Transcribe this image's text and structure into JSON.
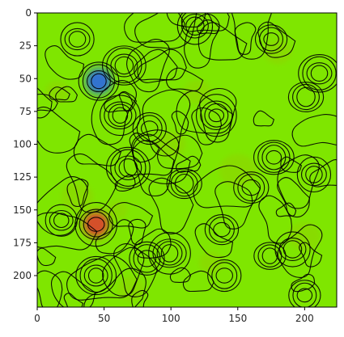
{
  "chart_data": {
    "type": "heatmap",
    "title": "",
    "xlabel": "",
    "ylabel": "",
    "xlim": [
      0,
      224
    ],
    "ylim": [
      224,
      0
    ],
    "x_ticks": [
      0,
      50,
      100,
      150,
      200
    ],
    "y_ticks": [
      0,
      25,
      50,
      75,
      100,
      125,
      150,
      175,
      200
    ],
    "grid": false,
    "colormap": "hsv-like (green baseline)",
    "colors": {
      "base": "#7fe600",
      "low_blob": "#2f6fd6",
      "high_blob": "#d84a2a",
      "mid_variation": "#8fd400",
      "contour": "#000000"
    },
    "features": [
      {
        "kind": "low-blob",
        "x": 46,
        "y": 52,
        "value": -1.0
      },
      {
        "kind": "high-blob",
        "x": 44,
        "y": 161,
        "value": 1.0
      },
      {
        "kind": "peak",
        "x": 65,
        "y": 40,
        "value": 0.4
      },
      {
        "kind": "peak",
        "x": 62,
        "y": 78,
        "value": 0.4
      },
      {
        "kind": "peak",
        "x": 84,
        "y": 88,
        "value": 0.35
      },
      {
        "kind": "peak",
        "x": 68,
        "y": 118,
        "value": 0.45
      },
      {
        "kind": "peak",
        "x": 134,
        "y": 78,
        "value": 0.45
      },
      {
        "kind": "peak",
        "x": 211,
        "y": 46,
        "value": 0.45
      },
      {
        "kind": "peak",
        "x": 201,
        "y": 64,
        "value": 0.35
      },
      {
        "kind": "peak",
        "x": 177,
        "y": 110,
        "value": 0.4
      },
      {
        "kind": "peak",
        "x": 207,
        "y": 123,
        "value": 0.3
      },
      {
        "kind": "peak",
        "x": 160,
        "y": 133,
        "value": 0.3
      },
      {
        "kind": "peak",
        "x": 18,
        "y": 158,
        "value": 0.3
      },
      {
        "kind": "peak",
        "x": 99,
        "y": 183,
        "value": 0.5
      },
      {
        "kind": "peak",
        "x": 82,
        "y": 187,
        "value": 0.35
      },
      {
        "kind": "peak",
        "x": 44,
        "y": 200,
        "value": 0.4
      },
      {
        "kind": "peak",
        "x": 138,
        "y": 165,
        "value": 0.3
      },
      {
        "kind": "peak",
        "x": 191,
        "y": 180,
        "value": 0.35
      },
      {
        "kind": "peak",
        "x": 174,
        "y": 185,
        "value": 0.3
      },
      {
        "kind": "peak",
        "x": 140,
        "y": 200,
        "value": 0.3
      },
      {
        "kind": "peak",
        "x": 118,
        "y": 10,
        "value": 0.25
      },
      {
        "kind": "peak",
        "x": 175,
        "y": 20,
        "value": 0.25
      },
      {
        "kind": "peak",
        "x": 30,
        "y": 20,
        "value": 0.25
      },
      {
        "kind": "peak",
        "x": 110,
        "y": 130,
        "value": 0.25
      },
      {
        "kind": "peak",
        "x": 200,
        "y": 215,
        "value": 0.25
      }
    ]
  }
}
